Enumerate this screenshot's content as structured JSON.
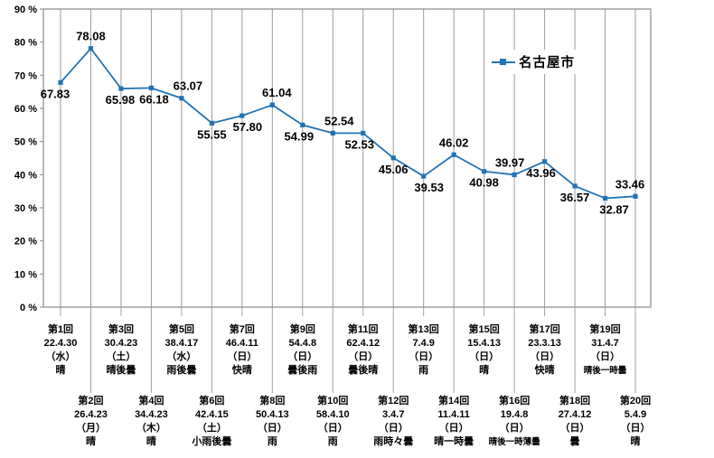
{
  "chart": {
    "legend_label": "名古屋市",
    "colors": {
      "series_line": "#2272b4",
      "marker": "#2272b4",
      "gridline": "#9b9b9b",
      "plot_border": "#8a8a8a",
      "leader_line": "#a0a0a0",
      "text": "#000000"
    }
  },
  "chart_data": {
    "type": "line",
    "title": "",
    "legend": [
      "名古屋市"
    ],
    "legend_position": "inside-top-right",
    "grid": "vertical-only",
    "ylim": [
      0,
      90
    ],
    "y_tick_step": 10,
    "y_tick_labels": [
      "0 %",
      "10 %",
      "20 %",
      "30 %",
      "40 %",
      "50 %",
      "60 %",
      "70 %",
      "80 %",
      "90 %"
    ],
    "series": [
      {
        "name": "名古屋市",
        "values": [
          67.83,
          78.08,
          65.98,
          66.18,
          63.07,
          55.55,
          57.8,
          61.04,
          54.99,
          52.54,
          52.53,
          45.06,
          39.53,
          46.02,
          40.98,
          39.97,
          43.96,
          36.57,
          32.87,
          33.46
        ]
      }
    ],
    "data_labels": [
      "67.83",
      "78.08",
      "65.98",
      "66.18",
      "63.07",
      "55.55",
      "57.80",
      "61.04",
      "54.99",
      "52.54",
      "52.53",
      "45.06",
      "39.53",
      "46.02",
      "40.98",
      "39.97",
      "43.96",
      "36.57",
      "32.87",
      "33.46"
    ],
    "data_label_side": [
      "below",
      "above",
      "below",
      "below",
      "above",
      "below",
      "below",
      "above",
      "below",
      "above",
      "below",
      "below",
      "below",
      "above",
      "below",
      "above",
      "below",
      "below",
      "below",
      "above"
    ],
    "x_categories": [
      {
        "round": "第1回",
        "date": "22.4.30",
        "day": "（水）",
        "weather": "晴"
      },
      {
        "round": "第2回",
        "date": "26.4.23",
        "day": "（月）",
        "weather": "晴"
      },
      {
        "round": "第3回",
        "date": "30.4.23",
        "day": "（土）",
        "weather": "晴後曇"
      },
      {
        "round": "第4回",
        "date": "34.4.23",
        "day": "（木）",
        "weather": "晴"
      },
      {
        "round": "第5回",
        "date": "38.4.17",
        "day": "（水）",
        "weather": "雨後曇"
      },
      {
        "round": "第6回",
        "date": "42.4.15",
        "day": "（土）",
        "weather": "小雨後曇"
      },
      {
        "round": "第7回",
        "date": "46.4.11",
        "day": "（日）",
        "weather": "快晴"
      },
      {
        "round": "第8回",
        "date": "50.4.13",
        "day": "（日）",
        "weather": "雨"
      },
      {
        "round": "第9回",
        "date": "54.4.8",
        "day": "（日）",
        "weather": "曇後雨"
      },
      {
        "round": "第10回",
        "date": "58.4.10",
        "day": "（日）",
        "weather": "雨"
      },
      {
        "round": "第11回",
        "date": "62.4.12",
        "day": "（日）",
        "weather": "曇後晴"
      },
      {
        "round": "第12回",
        "date": "3.4.7",
        "day": "（日）",
        "weather": "雨時々曇"
      },
      {
        "round": "第13回",
        "date": "7.4.9",
        "day": "（日）",
        "weather": "雨"
      },
      {
        "round": "第14回",
        "date": "11.4.11",
        "day": "（日）",
        "weather": "晴一時曇"
      },
      {
        "round": "第15回",
        "date": "15.4.13",
        "day": "（日）",
        "weather": "晴"
      },
      {
        "round": "第16回",
        "date": "19.4.8",
        "day": "（日）",
        "weather": "晴後一時薄曇"
      },
      {
        "round": "第17回",
        "date": "23.3.13",
        "day": "（日）",
        "weather": "快晴"
      },
      {
        "round": "第18回",
        "date": "27.4.12",
        "day": "（日）",
        "weather": "曇"
      },
      {
        "round": "第19回",
        "date": "31.4.7",
        "day": "（日）",
        "weather": "晴後一時曇"
      },
      {
        "round": "第20回",
        "date": "5.4.9",
        "day": "（日）",
        "weather": "晴"
      }
    ]
  }
}
